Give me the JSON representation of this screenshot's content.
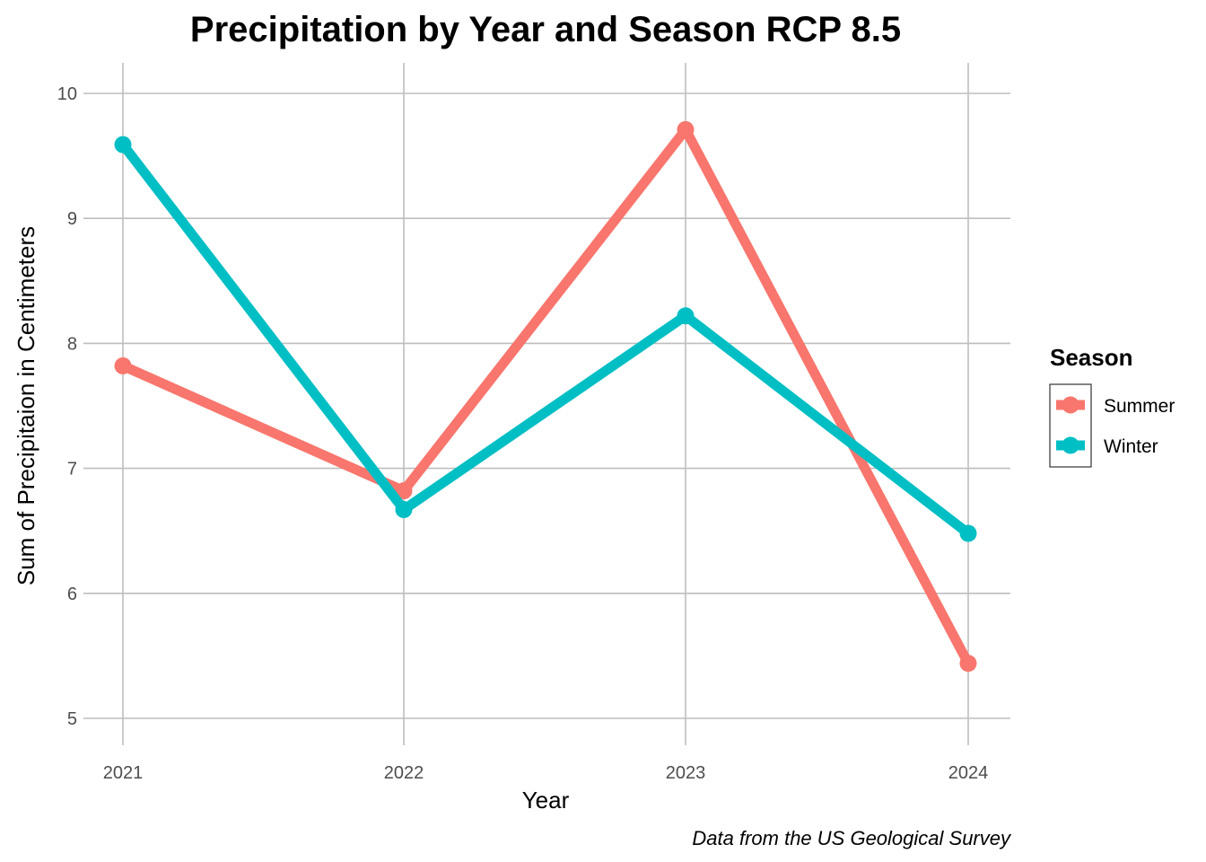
{
  "chart_data": {
    "type": "line",
    "title": "Precipitation by Year and Season RCP 8.5",
    "xlabel": "Year",
    "ylabel": "Sum of Precipitaion in Centimeters",
    "caption": "Data from the US Geological Survey",
    "x": [
      2021,
      2022,
      2023,
      2024
    ],
    "x_tick_labels": [
      "2021",
      "2022",
      "2023",
      "2024"
    ],
    "y_ticks": [
      5,
      6,
      7,
      8,
      9,
      10
    ],
    "y_tick_labels": [
      "5",
      "6",
      "7",
      "8",
      "9",
      "10"
    ],
    "ylim": [
      4.8,
      10.25
    ],
    "grid": true,
    "legend": {
      "title": "Season",
      "placement": "right"
    },
    "series": [
      {
        "name": "Summer",
        "color": "#F8766D",
        "values": [
          7.82,
          6.82,
          9.71,
          5.44
        ]
      },
      {
        "name": "Winter",
        "color": "#00BFC4",
        "values": [
          9.59,
          6.67,
          8.22,
          6.48
        ]
      }
    ]
  }
}
